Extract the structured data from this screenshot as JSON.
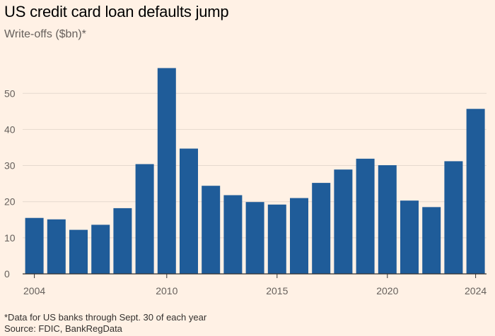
{
  "title": "US credit card loan defaults jump",
  "subtitle": "Write-offs ($bn)*",
  "footnote": "*Data for US banks through Sept. 30 of each year",
  "source": "Source: FDIC, BankRegData",
  "colors": {
    "bar": "#1f5c99",
    "grid": "#e6d9ce",
    "axis": "#33302e",
    "background": "#fff1e5"
  },
  "chart_data": {
    "type": "bar",
    "title": "US credit card loan defaults jump",
    "ylabel": "Write-offs ($bn)*",
    "xlabel": "",
    "categories": [
      "2004",
      "2005",
      "2006",
      "2007",
      "2008",
      "2009",
      "2010",
      "2011",
      "2012",
      "2013",
      "2014",
      "2015",
      "2016",
      "2017",
      "2018",
      "2019",
      "2020",
      "2021",
      "2022",
      "2023",
      "2024"
    ],
    "values": [
      15.5,
      15.1,
      12.2,
      13.6,
      18.2,
      30.4,
      57.0,
      34.7,
      24.4,
      21.8,
      19.9,
      19.2,
      21.0,
      25.2,
      28.9,
      31.9,
      30.1,
      20.3,
      18.5,
      31.2,
      45.7
    ],
    "x_tick_labels": [
      "2004",
      "2010",
      "2015",
      "2020",
      "2024"
    ],
    "y_ticks": [
      0,
      10,
      20,
      30,
      40,
      50
    ],
    "ylim": [
      0,
      60
    ],
    "grid": true,
    "legend": "none"
  }
}
